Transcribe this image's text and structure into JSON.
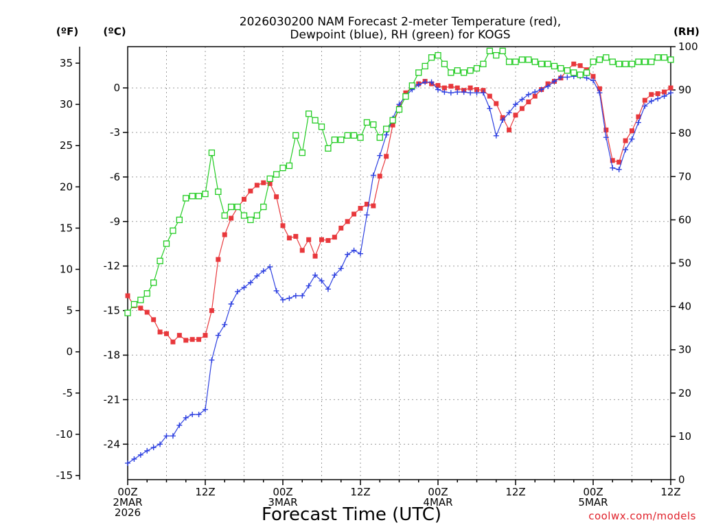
{
  "chart_data": {
    "type": "line",
    "title": [
      "2026030200 NAM Forecast 2-meter Temperature (red),",
      "Dewpoint (blue), RH (green) for KOGS"
    ],
    "xlabel": "Forecast Time (UTC)",
    "credit": "coolwx.com/models",
    "units": {
      "f": "(ºF)",
      "c": "(ºC)",
      "rh": "(RH)"
    },
    "x_range_hours": [
      0,
      84
    ],
    "x_ticks": [
      {
        "hour": 0,
        "lines": [
          "00Z",
          "2MAR",
          "2026"
        ]
      },
      {
        "hour": 12,
        "lines": [
          "12Z"
        ]
      },
      {
        "hour": 24,
        "lines": [
          "00Z",
          "3MAR"
        ]
      },
      {
        "hour": 36,
        "lines": [
          "12Z"
        ]
      },
      {
        "hour": 48,
        "lines": [
          "00Z",
          "4MAR"
        ]
      },
      {
        "hour": 60,
        "lines": [
          "12Z"
        ]
      },
      {
        "hour": 72,
        "lines": [
          "00Z",
          "5MAR"
        ]
      },
      {
        "hour": 84,
        "lines": [
          "12Z"
        ]
      }
    ],
    "y_left_f": {
      "range": [
        -15.5,
        37
      ],
      "ticks": [
        "-15",
        "-10",
        "-5",
        "0",
        "5",
        "10",
        "15",
        "20",
        "25",
        "30",
        "35"
      ]
    },
    "y_left_c": {
      "ticks": [
        "-24",
        "-21",
        "-18",
        "-15",
        "-12",
        "-9",
        "-6",
        "-3",
        "0"
      ]
    },
    "y_right_rh": {
      "range": [
        0,
        100
      ],
      "ticks": [
        "0",
        "10",
        "20",
        "30",
        "40",
        "50",
        "60",
        "70",
        "80",
        "90",
        "100"
      ]
    },
    "grid": true,
    "series": [
      {
        "name": "Temperature",
        "axis": "f",
        "color": "#e8383c",
        "marker": "square-filled",
        "values": [
          [
            0,
            6.8
          ],
          [
            1,
            5.6
          ],
          [
            2,
            5.3
          ],
          [
            3,
            4.8
          ],
          [
            4,
            3.9
          ],
          [
            5,
            2.4
          ],
          [
            6,
            2.2
          ],
          [
            7,
            1.2
          ],
          [
            8,
            2.0
          ],
          [
            9,
            1.4
          ],
          [
            10,
            1.5
          ],
          [
            11,
            1.5
          ],
          [
            12,
            2.0
          ],
          [
            13,
            5.0
          ],
          [
            14,
            11.2
          ],
          [
            15,
            14.2
          ],
          [
            16,
            16.2
          ],
          [
            17,
            17.5
          ],
          [
            18,
            18.5
          ],
          [
            19,
            19.5
          ],
          [
            20,
            20.2
          ],
          [
            21,
            20.5
          ],
          [
            22,
            20.4
          ],
          [
            23,
            18.8
          ],
          [
            24,
            15.3
          ],
          [
            25,
            13.8
          ],
          [
            26,
            14.0
          ],
          [
            27,
            12.3
          ],
          [
            28,
            13.6
          ],
          [
            29,
            11.6
          ],
          [
            30,
            13.6
          ],
          [
            31,
            13.5
          ],
          [
            32,
            13.9
          ],
          [
            33,
            15.0
          ],
          [
            34,
            15.8
          ],
          [
            35,
            16.7
          ],
          [
            36,
            17.4
          ],
          [
            37,
            17.9
          ],
          [
            38,
            17.7
          ],
          [
            39,
            21.3
          ],
          [
            40,
            23.7
          ],
          [
            41,
            27.5
          ],
          [
            42,
            29.6
          ],
          [
            43,
            31.4
          ],
          [
            44,
            32.1
          ],
          [
            45,
            32.5
          ],
          [
            46,
            32.8
          ],
          [
            47,
            32.5
          ],
          [
            48,
            32.3
          ],
          [
            49,
            32.0
          ],
          [
            50,
            32.2
          ],
          [
            51,
            32.0
          ],
          [
            52,
            31.7
          ],
          [
            53,
            32.0
          ],
          [
            54,
            31.8
          ],
          [
            55,
            31.7
          ],
          [
            56,
            31.0
          ],
          [
            57,
            30.1
          ],
          [
            58,
            28.4
          ],
          [
            59,
            26.9
          ],
          [
            60,
            28.7
          ],
          [
            61,
            29.5
          ],
          [
            62,
            30.3
          ],
          [
            63,
            31.0
          ],
          [
            64,
            31.8
          ],
          [
            65,
            32.5
          ],
          [
            66,
            32.8
          ],
          [
            67,
            33.2
          ],
          [
            68,
            34.2
          ],
          [
            69,
            34.9
          ],
          [
            70,
            34.7
          ],
          [
            71,
            34.2
          ],
          [
            72,
            33.4
          ],
          [
            73,
            31.9
          ],
          [
            74,
            26.9
          ],
          [
            75,
            23.2
          ],
          [
            76,
            23.0
          ],
          [
            77,
            25.6
          ],
          [
            78,
            26.8
          ],
          [
            79,
            28.5
          ],
          [
            80,
            30.5
          ],
          [
            81,
            31.2
          ],
          [
            82,
            31.3
          ],
          [
            83,
            31.5
          ],
          [
            84,
            32.0
          ]
        ]
      },
      {
        "name": "Dewpoint",
        "axis": "f",
        "color": "#2c3fe0",
        "marker": "plus",
        "values": [
          [
            0,
            -13.5
          ],
          [
            1,
            -13.0
          ],
          [
            2,
            -12.5
          ],
          [
            3,
            -12.0
          ],
          [
            4,
            -11.6
          ],
          [
            5,
            -11.2
          ],
          [
            6,
            -10.2
          ],
          [
            7,
            -10.2
          ],
          [
            8,
            -8.9
          ],
          [
            9,
            -8.0
          ],
          [
            10,
            -7.6
          ],
          [
            11,
            -7.6
          ],
          [
            12,
            -7.0
          ],
          [
            13,
            -1.0
          ],
          [
            14,
            2.0
          ],
          [
            15,
            3.3
          ],
          [
            16,
            5.8
          ],
          [
            17,
            7.3
          ],
          [
            18,
            7.8
          ],
          [
            19,
            8.4
          ],
          [
            20,
            9.2
          ],
          [
            21,
            9.8
          ],
          [
            22,
            10.3
          ],
          [
            23,
            7.4
          ],
          [
            24,
            6.3
          ],
          [
            25,
            6.5
          ],
          [
            26,
            6.8
          ],
          [
            27,
            6.8
          ],
          [
            28,
            8.0
          ],
          [
            29,
            9.3
          ],
          [
            30,
            8.6
          ],
          [
            31,
            7.6
          ],
          [
            32,
            9.3
          ],
          [
            33,
            10.1
          ],
          [
            34,
            11.8
          ],
          [
            35,
            12.3
          ],
          [
            36,
            11.9
          ],
          [
            37,
            16.6
          ],
          [
            38,
            21.4
          ],
          [
            39,
            23.8
          ],
          [
            40,
            26.3
          ],
          [
            41,
            28.3
          ],
          [
            42,
            30.0
          ],
          [
            43,
            31.0
          ],
          [
            44,
            31.8
          ],
          [
            45,
            32.4
          ],
          [
            46,
            32.7
          ],
          [
            47,
            32.7
          ],
          [
            48,
            31.8
          ],
          [
            49,
            31.5
          ],
          [
            50,
            31.4
          ],
          [
            51,
            31.5
          ],
          [
            52,
            31.5
          ],
          [
            53,
            31.4
          ],
          [
            54,
            31.4
          ],
          [
            55,
            31.4
          ],
          [
            56,
            29.5
          ],
          [
            57,
            26.2
          ],
          [
            58,
            28.1
          ],
          [
            59,
            29.0
          ],
          [
            60,
            30.0
          ],
          [
            61,
            30.6
          ],
          [
            62,
            31.2
          ],
          [
            63,
            31.5
          ],
          [
            64,
            31.8
          ],
          [
            65,
            32.2
          ],
          [
            66,
            32.8
          ],
          [
            67,
            33.3
          ],
          [
            68,
            33.3
          ],
          [
            69,
            33.4
          ],
          [
            70,
            33.4
          ],
          [
            71,
            33.2
          ],
          [
            72,
            32.9
          ],
          [
            73,
            31.4
          ],
          [
            74,
            26.0
          ],
          [
            75,
            22.3
          ],
          [
            76,
            22.1
          ],
          [
            77,
            24.5
          ],
          [
            78,
            25.8
          ],
          [
            79,
            27.8
          ],
          [
            80,
            29.8
          ],
          [
            81,
            30.4
          ],
          [
            82,
            30.7
          ],
          [
            83,
            31.0
          ],
          [
            84,
            31.4
          ]
        ]
      },
      {
        "name": "RH",
        "axis": "rh",
        "color": "#22cc22",
        "marker": "square-open",
        "values": [
          [
            0,
            38.5
          ],
          [
            1,
            40.5
          ],
          [
            2,
            41.5
          ],
          [
            3,
            43.0
          ],
          [
            4,
            45.5
          ],
          [
            5,
            50.5
          ],
          [
            6,
            54.5
          ],
          [
            7,
            57.5
          ],
          [
            8,
            60.0
          ],
          [
            9,
            65.0
          ],
          [
            10,
            65.5
          ],
          [
            11,
            65.5
          ],
          [
            12,
            66.0
          ],
          [
            13,
            75.5
          ],
          [
            14,
            66.5
          ],
          [
            15,
            61.0
          ],
          [
            16,
            63.0
          ],
          [
            17,
            63.0
          ],
          [
            18,
            61.0
          ],
          [
            19,
            60.0
          ],
          [
            20,
            61.0
          ],
          [
            21,
            63.0
          ],
          [
            22,
            69.5
          ],
          [
            23,
            70.5
          ],
          [
            24,
            72.0
          ],
          [
            25,
            72.5
          ],
          [
            26,
            79.5
          ],
          [
            27,
            75.5
          ],
          [
            28,
            84.5
          ],
          [
            29,
            83.0
          ],
          [
            30,
            81.5
          ],
          [
            31,
            76.5
          ],
          [
            32,
            78.5
          ],
          [
            33,
            78.5
          ],
          [
            34,
            79.5
          ],
          [
            35,
            79.5
          ],
          [
            36,
            79.0
          ],
          [
            37,
            82.5
          ],
          [
            38,
            82.0
          ],
          [
            39,
            79.0
          ],
          [
            40,
            81.0
          ],
          [
            41,
            83.0
          ],
          [
            42,
            85.5
          ],
          [
            43,
            88.5
          ],
          [
            44,
            91.0
          ],
          [
            45,
            94.0
          ],
          [
            46,
            95.5
          ],
          [
            47,
            97.5
          ],
          [
            48,
            98.0
          ],
          [
            49,
            96.0
          ],
          [
            50,
            94.0
          ],
          [
            51,
            94.5
          ],
          [
            52,
            94.0
          ],
          [
            53,
            94.5
          ],
          [
            54,
            95.0
          ],
          [
            55,
            96.0
          ],
          [
            56,
            99.0
          ],
          [
            57,
            98.0
          ],
          [
            58,
            99.0
          ],
          [
            59,
            96.5
          ],
          [
            60,
            96.5
          ],
          [
            61,
            97.0
          ],
          [
            62,
            97.0
          ],
          [
            63,
            96.5
          ],
          [
            64,
            96.0
          ],
          [
            65,
            96.0
          ],
          [
            66,
            95.5
          ],
          [
            67,
            95.0
          ],
          [
            68,
            94.5
          ],
          [
            69,
            94.0
          ],
          [
            70,
            93.5
          ],
          [
            71,
            94.0
          ],
          [
            72,
            96.5
          ],
          [
            73,
            97.0
          ],
          [
            74,
            97.5
          ],
          [
            75,
            96.5
          ],
          [
            76,
            96.0
          ],
          [
            77,
            96.0
          ],
          [
            78,
            96.0
          ],
          [
            79,
            96.5
          ],
          [
            80,
            96.5
          ],
          [
            81,
            96.5
          ],
          [
            82,
            97.5
          ],
          [
            83,
            97.5
          ],
          [
            84,
            97.0
          ]
        ]
      }
    ]
  }
}
